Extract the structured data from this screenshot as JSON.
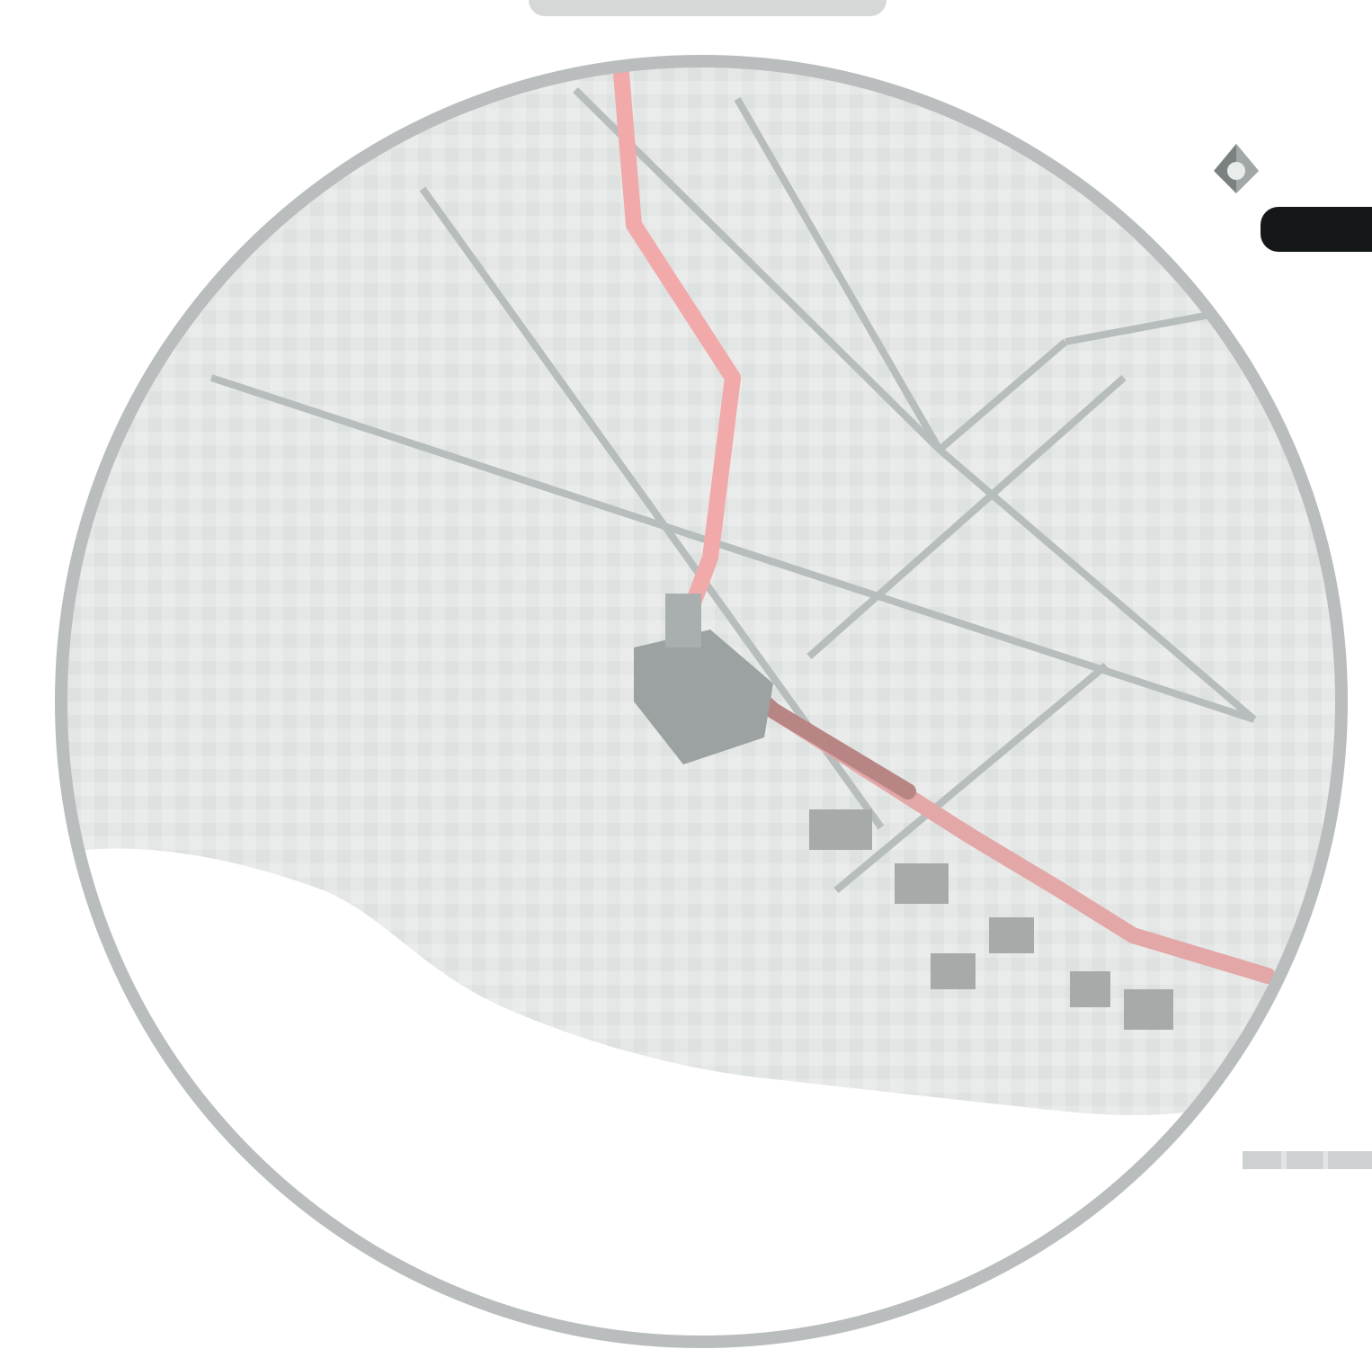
{
  "map": {
    "colors": {
      "land": "#e4e7e6",
      "land_light": "#eef0ef",
      "road": "#b7bdbc",
      "road_major": "#a5acab",
      "route": "#f2a9a9",
      "route_dark": "#b88585",
      "city": "#9aa1a1",
      "ring": "#b9bdbd",
      "water_blank": "#ffffff",
      "marker": "#151818"
    },
    "features": {
      "route_line": "red-route",
      "city_block": "city-center",
      "blocks": [
        "block-1",
        "block-2",
        "block-3",
        "block-4",
        "block-5",
        "block-6"
      ]
    }
  },
  "controls": {
    "pin_icon": "pin-icon",
    "black_bar": "dark-control",
    "scale_text": ""
  }
}
